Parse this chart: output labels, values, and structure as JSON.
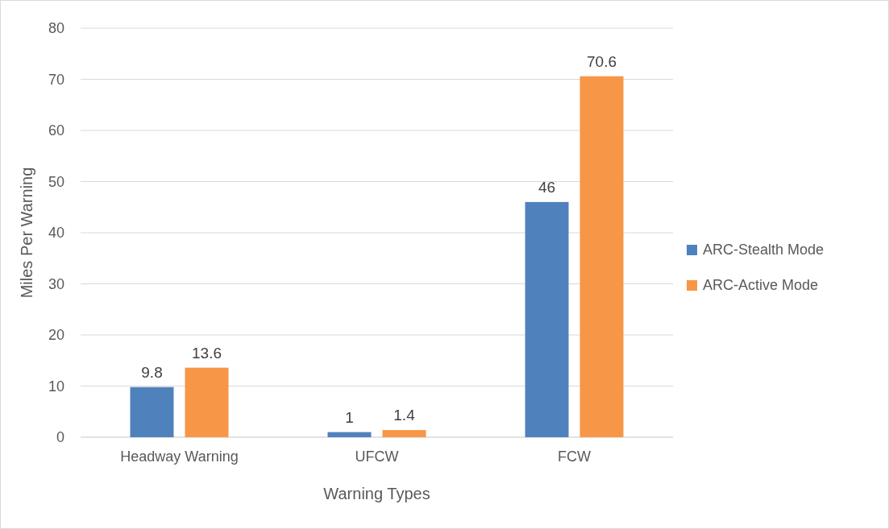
{
  "chart_data": {
    "type": "bar",
    "xlabel": "Warning Types",
    "ylabel": "Miles Per Warning",
    "categories": [
      "Headway Warning",
      "UFCW",
      "FCW"
    ],
    "series": [
      {
        "name": "ARC-Stealth Mode",
        "color": "#4f81bd",
        "values": [
          9.8,
          1,
          46
        ]
      },
      {
        "name": "ARC-Active Mode",
        "color": "#f79646",
        "values": [
          13.6,
          1.4,
          70.6
        ]
      }
    ],
    "ylim": [
      0,
      80
    ],
    "yticks": [
      0,
      10,
      20,
      30,
      40,
      50,
      60,
      70,
      80
    ],
    "grid": "y",
    "legend": "right",
    "data_labels": true
  }
}
